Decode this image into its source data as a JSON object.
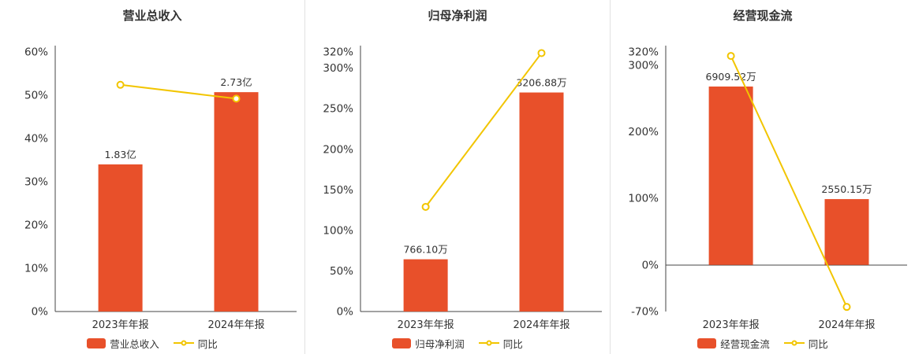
{
  "colors": {
    "bar": "#e8502a",
    "line": "#f2c500",
    "axis": "#444444",
    "text": "#333333",
    "separator": "#e2e2e2"
  },
  "chart_data": [
    {
      "type": "bar",
      "title": "营业总收入",
      "categories": [
        "2023年年报",
        "2024年年报"
      ],
      "ylim": [
        0,
        60
      ],
      "y_ticks": [
        {
          "v": 60,
          "label": "60%"
        },
        {
          "v": 50,
          "label": "50%"
        },
        {
          "v": 40,
          "label": "40%"
        },
        {
          "v": 30,
          "label": "30%"
        },
        {
          "v": 20,
          "label": "20%"
        },
        {
          "v": 10,
          "label": "10%"
        },
        {
          "v": 0,
          "label": "0%"
        }
      ],
      "bar_series": {
        "name": "营业总收入",
        "labels": [
          "1.83亿",
          "2.73亿"
        ],
        "values_pct": [
          34,
          50.7
        ]
      },
      "line_series": {
        "name": "同比",
        "values_pct": [
          52.4,
          49.2
        ]
      },
      "grid": false,
      "legend_position": "bottom"
    },
    {
      "type": "bar",
      "title": "归母净利润",
      "categories": [
        "2023年年报",
        "2024年年报"
      ],
      "ylim": [
        0,
        320
      ],
      "y_ticks": [
        {
          "v": 320,
          "label": "320%"
        },
        {
          "v": 300,
          "label": "300%"
        },
        {
          "v": 250,
          "label": "250%"
        },
        {
          "v": 200,
          "label": "200%"
        },
        {
          "v": 150,
          "label": "150%"
        },
        {
          "v": 100,
          "label": "100%"
        },
        {
          "v": 50,
          "label": "50%"
        },
        {
          "v": 0,
          "label": "0%"
        }
      ],
      "bar_series": {
        "name": "归母净利润",
        "labels": [
          "766.10万",
          "3206.88万"
        ],
        "values_pct": [
          64.4,
          270
        ]
      },
      "line_series": {
        "name": "同比",
        "values_pct": [
          129,
          318.6
        ]
      },
      "grid": false,
      "legend_position": "bottom"
    },
    {
      "type": "bar",
      "title": "经营现金流",
      "categories": [
        "2023年年报",
        "2024年年报"
      ],
      "ylim": [
        -70,
        320
      ],
      "y_ticks": [
        {
          "v": 320,
          "label": "320%"
        },
        {
          "v": 300,
          "label": "300%"
        },
        {
          "v": 200,
          "label": "200%"
        },
        {
          "v": 100,
          "label": "100%"
        },
        {
          "v": 0,
          "label": "0%"
        },
        {
          "v": -70,
          "label": "-70%"
        }
      ],
      "bar_series": {
        "name": "经营现金流",
        "labels": [
          "6909.52万",
          "2550.15万"
        ],
        "values_pct": [
          268,
          98.9
        ]
      },
      "line_series": {
        "name": "同比",
        "values_pct": [
          314,
          -63.1
        ]
      },
      "grid": false,
      "legend_position": "bottom"
    }
  ]
}
